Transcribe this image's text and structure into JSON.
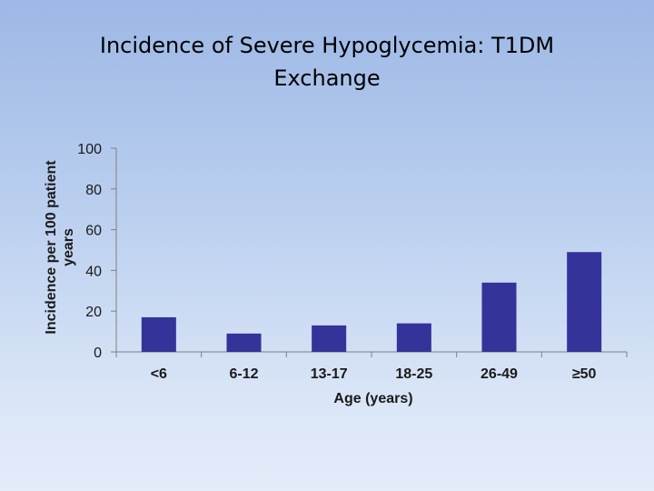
{
  "slide": {
    "title_line1": "Incidence of Severe Hypoglycemia: T1DM",
    "title_line2": "Exchange"
  },
  "chart_data": {
    "type": "bar",
    "title": "Incidence of Severe Hypoglycemia: T1DM Exchange",
    "xlabel": "Age (years)",
    "ylabel_line1": "Incidence per 100 patient",
    "ylabel_line2": "years",
    "categories": [
      "<6",
      "6-12",
      "13-17",
      "18-25",
      "26-49",
      "≥50"
    ],
    "values": [
      17,
      9,
      13,
      14,
      34,
      49
    ],
    "ylim": [
      0,
      100
    ],
    "yticks": [
      "0",
      "20",
      "40",
      "60",
      "80",
      "100"
    ],
    "grid": false,
    "legend": "none",
    "bar_color": "#333399"
  }
}
